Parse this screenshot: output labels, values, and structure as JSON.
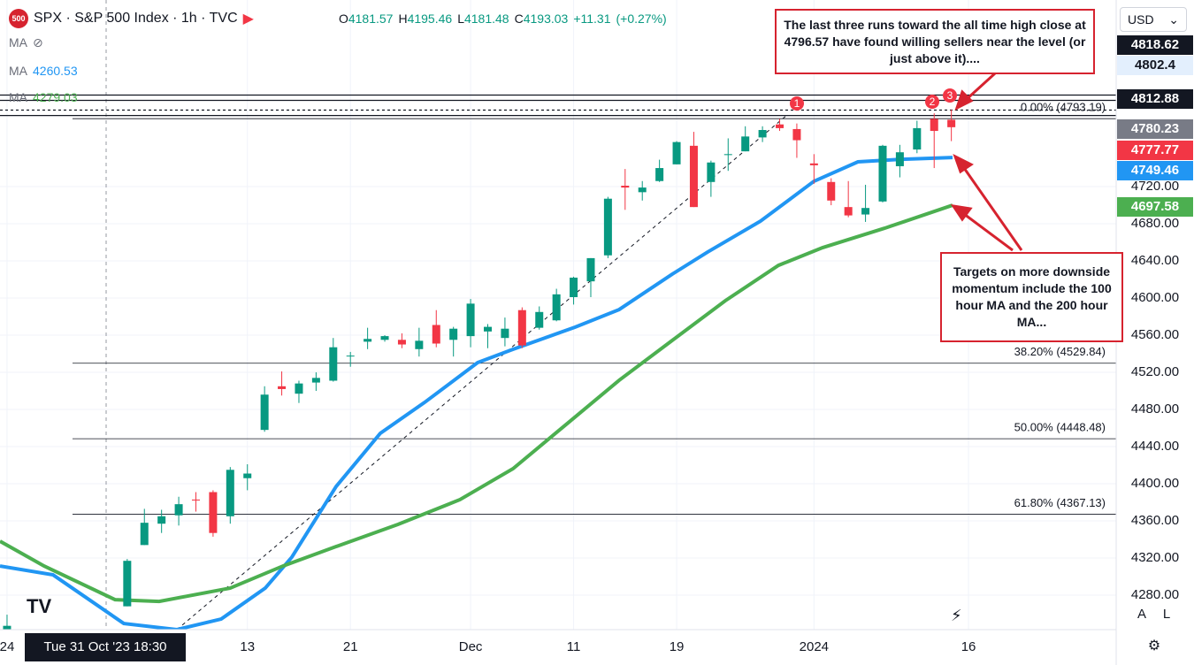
{
  "header": {
    "logo": "500",
    "title": "SPX · S&P 500 Index · 1h · TVC",
    "ohlc": [
      {
        "key": "O",
        "value": 4181.57
      },
      {
        "key": "H",
        "value": 4195.46
      },
      {
        "key": "L",
        "value": 4181.48
      },
      {
        "key": "C",
        "value": 4193.03
      }
    ],
    "change": "+11.31",
    "change_pct": "(+0.27%)"
  },
  "currency": "USD",
  "scale_buttons": [
    "A",
    "L"
  ],
  "crosshair_label": "Tue 31 Oct '23 18:30",
  "chart_data": {
    "type": "candlestick",
    "legend_hidden": "MA",
    "up_color": "#089981",
    "down_color": "#f23645",
    "x": [
      0,
      7,
      8,
      9,
      10,
      11,
      12,
      13,
      14,
      15,
      16,
      17,
      18,
      19,
      20,
      21,
      22,
      23,
      24,
      25,
      26,
      27,
      28,
      29,
      30,
      31,
      32,
      33,
      34,
      35,
      36,
      37,
      38,
      39,
      40,
      41,
      42,
      43,
      44,
      45,
      46,
      47,
      48,
      49,
      50,
      51,
      52,
      53,
      54,
      55
    ],
    "open": [
      4235,
      4268,
      4334,
      4357,
      4366,
      4383,
      4391,
      4365,
      4406,
      4458,
      4505,
      4497,
      4509,
      4511,
      4538,
      4553,
      4555,
      4555,
      4545,
      4571,
      4555,
      4559,
      4564,
      4557,
      4587,
      4568,
      4576,
      4601,
      4618,
      4646,
      4721,
      4714,
      4726,
      4744,
      4764,
      4725,
      4754,
      4758,
      4773,
      4787,
      4782,
      4745,
      4725,
      4698,
      4690,
      4704,
      4742,
      4760,
      4793,
      4792
    ],
    "high": [
      4259,
      4319,
      4373,
      4372,
      4386,
      4391,
      4393,
      4418,
      4421,
      4505,
      4521,
      4511,
      4520,
      4557,
      4542,
      4568,
      4560,
      4562,
      4568,
      4587,
      4569,
      4599,
      4572,
      4579,
      4590,
      4591,
      4610,
      4623,
      4643,
      4709,
      4739,
      4726,
      4749,
      4769,
      4779,
      4748,
      4772,
      4785,
      4785,
      4793,
      4788,
      4755,
      4729,
      4726,
      4722,
      4765,
      4765,
      4791,
      4799,
      4803
    ],
    "low": [
      4220,
      4268,
      4334,
      4347,
      4355,
      4370,
      4343,
      4357,
      4393,
      4456,
      4495,
      4487,
      4500,
      4510,
      4526,
      4545,
      4553,
      4546,
      4537,
      4547,
      4537,
      4547,
      4546,
      4548,
      4546,
      4566,
      4575,
      4593,
      4601,
      4643,
      4695,
      4705,
      4725,
      4744,
      4698,
      4709,
      4737,
      4758,
      4768,
      4780,
      4751,
      4723,
      4700,
      4687,
      4682,
      4703,
      4730,
      4756,
      4740,
      4769
    ],
    "close": [
      4247,
      4317,
      4358,
      4365,
      4378,
      4382,
      4347,
      4415,
      4411,
      4496,
      4502,
      4508,
      4514,
      4547,
      4538,
      4556,
      4559,
      4550,
      4554,
      4551,
      4567,
      4594,
      4569,
      4567,
      4549,
      4585,
      4604,
      4622,
      4643,
      4707,
      4719,
      4719,
      4740,
      4768,
      4698,
      4746,
      4755,
      4774,
      4781,
      4783,
      4770,
      4743,
      4705,
      4689,
      4697,
      4764,
      4757,
      4783,
      4780,
      4784
    ],
    "series": [
      {
        "name": "MA",
        "legend_value": 4260.53,
        "color": "#2196f3",
        "x": [
          -0.41,
          2.68,
          6.8,
          9.89,
          12.47,
          15.04,
          16.59,
          19.17,
          21.74,
          24.32,
          27.41,
          29.47,
          33.08,
          35.65,
          38.74,
          40.8,
          43.89,
          46.99,
          49.56,
          52.14,
          55.07
        ],
        "values": [
          4311.4,
          4301.9,
          4249.5,
          4242.9,
          4254.3,
          4287.6,
          4321.0,
          4397.1,
          4454.3,
          4487.6,
          4530.5,
          4544.8,
          4568.6,
          4587.6,
          4625.7,
          4649.5,
          4682.9,
          4725.7,
          4746.7,
          4749.5,
          4751.4
        ]
      },
      {
        "name": "MA",
        "legend_value": 4279.03,
        "color": "#4caf50",
        "x": [
          -0.41,
          2.16,
          6.29,
          8.86,
          12.99,
          16.07,
          19.17,
          22.77,
          26.38,
          29.47,
          32.56,
          35.65,
          38.74,
          41.83,
          44.93,
          47.5,
          51.11,
          55.07
        ],
        "values": [
          4338.1,
          4311.4,
          4275.2,
          4273.3,
          4287.6,
          4311.4,
          4332.4,
          4356.2,
          4382.9,
          4416.2,
          4463.8,
          4511.4,
          4554.3,
          4597.1,
          4635.2,
          4654.3,
          4675.2,
          4700.0
        ]
      }
    ],
    "fib_levels": [
      {
        "value": 4793.19,
        "label": "0.00% (4793.19)"
      },
      {
        "value": 4529.84,
        "label": "38.20% (4529.84)"
      },
      {
        "value": 4448.48,
        "label": "50.00% (4448.48)"
      },
      {
        "value": 4367.13,
        "label": "61.80% (4367.13)"
      }
    ],
    "price_labels": [
      {
        "value": 4818.62,
        "color": "#131722",
        "text_color": "#ffffff",
        "line": "solid"
      },
      {
        "value": 4802.4,
        "color": "#e3effd",
        "text_color": "#131722",
        "line": "dashed"
      },
      {
        "value": 4812.88,
        "color": "#131722",
        "text_color": "#ffffff",
        "line": "solid"
      },
      {
        "value": 4780.23,
        "color": "#787b86",
        "text_color": "#ffffff"
      },
      {
        "value": 4777.77,
        "color": "#f23645",
        "text_color": "#ffffff"
      },
      {
        "value": 4749.46,
        "color": "#2196f3",
        "text_color": "#ffffff"
      },
      {
        "value": 4697.58,
        "color": "#4caf50",
        "text_color": "#ffffff"
      }
    ],
    "ath_line": 4796.57,
    "run_markers": [
      "1",
      "2",
      "3"
    ],
    "annotations": [
      "The last three runs toward the all time high close at 4796.57 have found willing sellers near the level (or just above it)....",
      "Targets on more downside momentum include the 100 hour MA and the 200 hour MA..."
    ],
    "xlim": [
      -0.41,
      64.6
    ],
    "ylim": [
      4242.9,
      4921
    ],
    "xticks": [
      {
        "value": 0,
        "label": "24"
      },
      {
        "value": 14,
        "label": "13"
      },
      {
        "value": 20,
        "label": "21"
      },
      {
        "value": 27,
        "label": "Dec"
      },
      {
        "value": 33,
        "label": "11"
      },
      {
        "value": 39,
        "label": "19"
      },
      {
        "value": 47,
        "label": "2024"
      },
      {
        "value": 56,
        "label": "16"
      }
    ],
    "yticks": [
      {
        "value": 4280,
        "label": "4280.00"
      },
      {
        "value": 4320,
        "label": "4320.00"
      },
      {
        "value": 4360,
        "label": "4360.00"
      },
      {
        "value": 4400,
        "label": "4400.00"
      },
      {
        "value": 4440,
        "label": "4440.00"
      },
      {
        "value": 4480,
        "label": "4480.00"
      },
      {
        "value": 4520,
        "label": "4520.00"
      },
      {
        "value": 4560,
        "label": "4560.00"
      },
      {
        "value": 4600,
        "label": "4600.00"
      },
      {
        "value": 4640,
        "label": "4640.00"
      },
      {
        "value": 4680,
        "label": "4680.00"
      },
      {
        "value": 4720,
        "label": "4720.00"
      }
    ],
    "grid": true
  }
}
